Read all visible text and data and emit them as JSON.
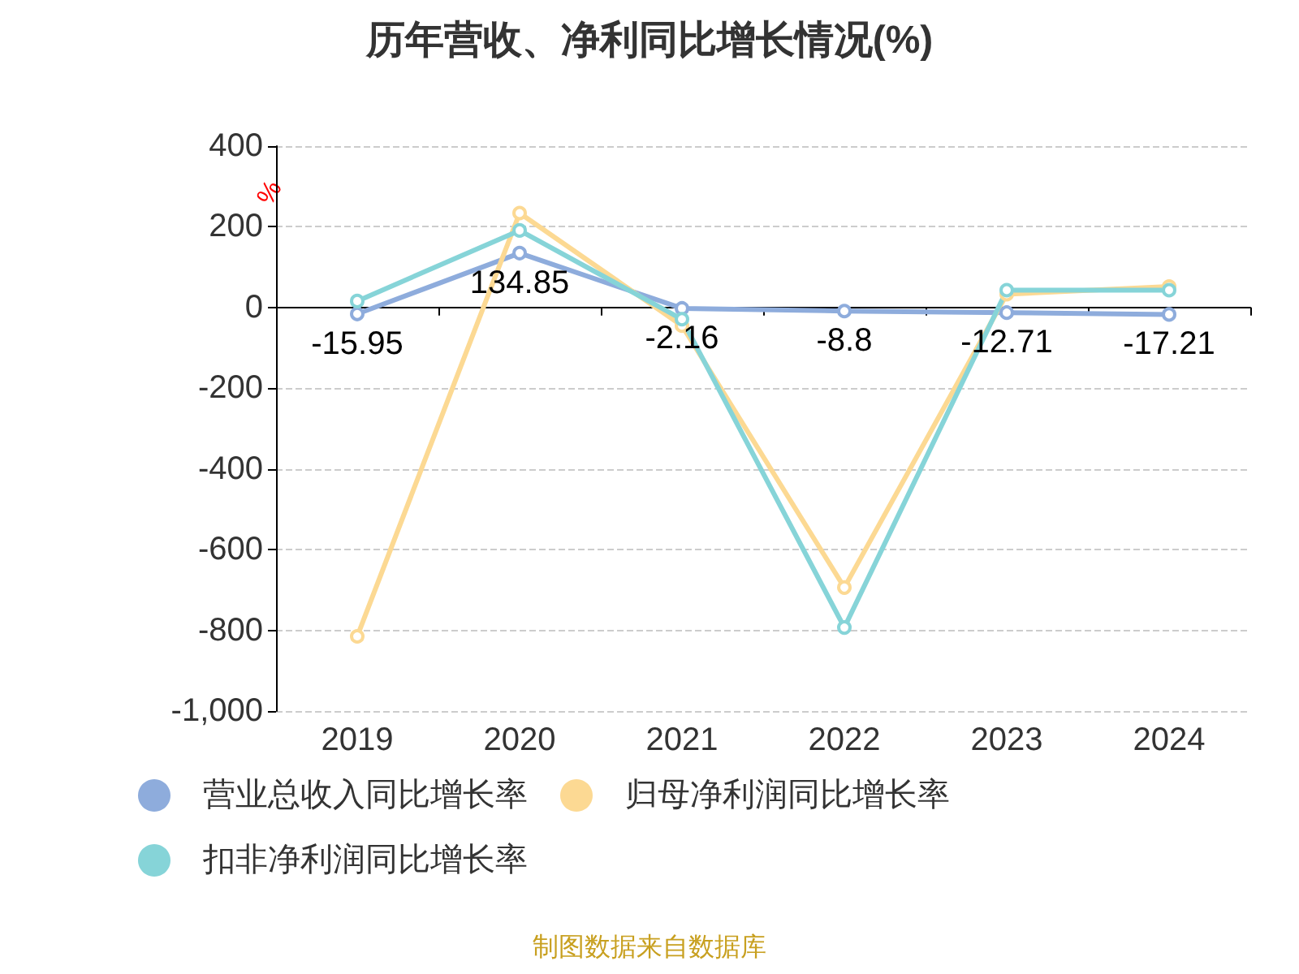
{
  "chart_data": {
    "type": "line",
    "title": "历年营收、净利同比增长情况(%)",
    "ylabel": "%",
    "categories": [
      "2019",
      "2020",
      "2021",
      "2022",
      "2023",
      "2024"
    ],
    "series": [
      {
        "name": "营业总收入同比增长率",
        "color": "#8eacdc",
        "values": [
          -15.95,
          134.85,
          -2.16,
          -8.8,
          -12.71,
          -17.21
        ],
        "value_labels": [
          "-15.95",
          "134.85",
          "-2.16",
          "-8.8",
          "-12.71",
          "-17.21"
        ]
      },
      {
        "name": "归母净利润同比增长率",
        "color": "#fcd993",
        "values": [
          -815,
          234,
          -45,
          -694,
          33,
          52
        ]
      },
      {
        "name": "扣非净利润同比增长率",
        "color": "#86d4d8",
        "values": [
          16,
          191,
          -29,
          -793,
          43,
          43
        ]
      }
    ],
    "ylim": [
      -1000,
      400
    ],
    "yticks": [
      {
        "value": -1000,
        "label": "-1,000"
      },
      -800,
      -600,
      -400,
      -200,
      0,
      200,
      400
    ],
    "grid": "y",
    "legend": "bottom",
    "marker": "circle",
    "line_style": "solid",
    "annotations": [
      "制图数据来自数据库"
    ]
  }
}
